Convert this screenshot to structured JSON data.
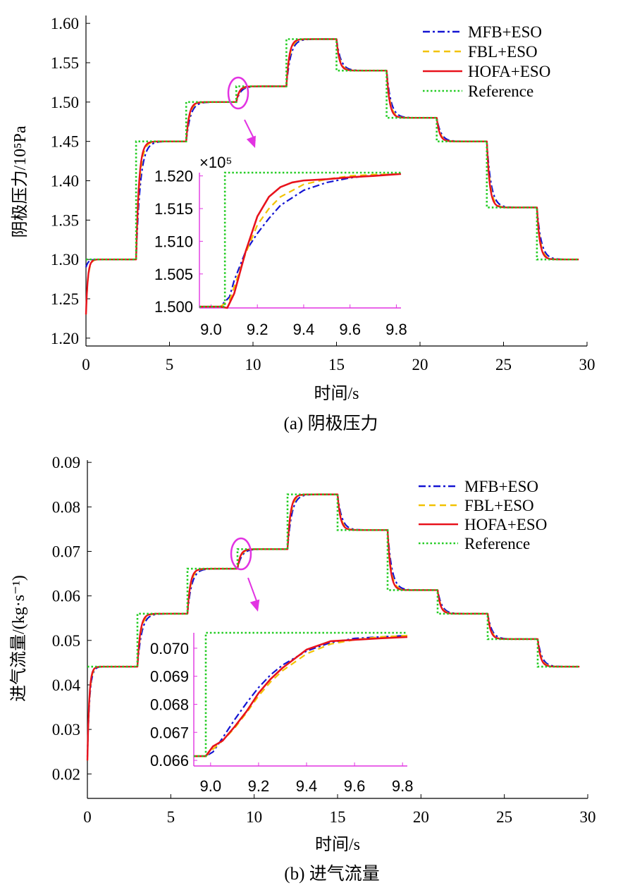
{
  "chart_data": [
    {
      "type": "line",
      "caption": "(a) 阴极压力",
      "xlabel": "时间/s",
      "ylabel": "阴极压力/10⁵Pa",
      "xlim": [
        0,
        30
      ],
      "ylim": [
        1.19,
        1.61
      ],
      "xticks": [
        0,
        5,
        10,
        15,
        20,
        25,
        30
      ],
      "yticks": [
        "1.20",
        "1.25",
        "1.30",
        "1.35",
        "1.40",
        "1.45",
        "1.50",
        "1.55",
        "1.60"
      ],
      "reference_steps": [
        [
          0,
          1.3
        ],
        [
          3,
          1.45
        ],
        [
          6,
          1.5
        ],
        [
          9,
          1.52
        ],
        [
          12,
          1.58
        ],
        [
          15,
          1.54
        ],
        [
          18,
          1.48
        ],
        [
          21,
          1.45
        ],
        [
          24,
          1.366
        ],
        [
          27,
          1.3
        ]
      ],
      "x_end": 29.5,
      "initial_value": 1.23,
      "legend": [
        "MFB+ESO",
        "FBL+ESO",
        "HOFA+ESO",
        "Reference"
      ],
      "legend_position": "top-right",
      "colors": {
        "MFB+ESO": "#1414d2",
        "FBL+ESO": "#f2c200",
        "HOFA+ESO": "#e8121c",
        "Reference": "#22cc22",
        "annotation": "#e233e2"
      },
      "inset": {
        "multiplier": "×10⁵",
        "xlim": [
          8.95,
          9.82
        ],
        "ylim": [
          1.4998,
          1.5205
        ],
        "xticks": [
          "9.0",
          "9.2",
          "9.4",
          "9.6",
          "9.8"
        ],
        "yticks": [
          "1.500",
          "1.505",
          "1.510",
          "1.515",
          "1.520"
        ],
        "reference": [
          [
            8.95,
            1.5
          ],
          [
            9.06,
            1.5
          ],
          [
            9.06,
            1.5205
          ],
          [
            9.82,
            1.5205
          ]
        ],
        "series": [
          {
            "name": "MFB+ESO",
            "points": [
              [
                8.95,
                1.5
              ],
              [
                9.04,
                1.5
              ],
              [
                9.08,
                1.5015
              ],
              [
                9.1,
                1.504
              ],
              [
                9.15,
                1.5085
              ],
              [
                9.2,
                1.5112
              ],
              [
                9.25,
                1.5135
              ],
              [
                9.3,
                1.5155
              ],
              [
                9.4,
                1.5178
              ],
              [
                9.5,
                1.519
              ],
              [
                9.6,
                1.5197
              ],
              [
                9.7,
                1.5201
              ],
              [
                9.82,
                1.5203
              ]
            ]
          },
          {
            "name": "FBL+ESO",
            "points": [
              [
                8.95,
                1.5
              ],
              [
                9.04,
                1.5
              ],
              [
                9.08,
                1.501
              ],
              [
                9.1,
                1.503
              ],
              [
                9.15,
                1.5082
              ],
              [
                9.2,
                1.5125
              ],
              [
                9.25,
                1.515
              ],
              [
                9.3,
                1.5168
              ],
              [
                9.4,
                1.5187
              ],
              [
                9.5,
                1.5195
              ],
              [
                9.6,
                1.52
              ],
              [
                9.7,
                1.5202
              ],
              [
                9.82,
                1.5203
              ]
            ]
          },
          {
            "name": "HOFA+ESO",
            "points": [
              [
                8.95,
                1.5
              ],
              [
                9.04,
                1.5
              ],
              [
                9.07,
                1.4998
              ],
              [
                9.1,
                1.502
              ],
              [
                9.15,
                1.5085
              ],
              [
                9.2,
                1.5138
              ],
              [
                9.25,
                1.5168
              ],
              [
                9.3,
                1.5183
              ],
              [
                9.35,
                1.519
              ],
              [
                9.4,
                1.5193
              ],
              [
                9.5,
                1.5195
              ],
              [
                9.6,
                1.5198
              ],
              [
                9.7,
                1.52
              ],
              [
                9.82,
                1.5203
              ]
            ]
          }
        ]
      }
    },
    {
      "type": "line",
      "caption": "(b) 进气流量",
      "xlabel": "时间/s",
      "ylabel": "进气流量/(kg·s⁻¹)",
      "xlim": [
        0,
        30
      ],
      "ylim": [
        0.0145,
        0.0905
      ],
      "xticks": [
        0,
        5,
        10,
        15,
        20,
        25,
        30
      ],
      "yticks": [
        "0.02",
        "0.03",
        "0.04",
        "0.05",
        "0.06",
        "0.07",
        "0.08",
        "0.09"
      ],
      "reference_steps": [
        [
          0,
          0.0441
        ],
        [
          3,
          0.056
        ],
        [
          6,
          0.0661
        ],
        [
          9,
          0.0705
        ],
        [
          12,
          0.0828
        ],
        [
          15,
          0.0748
        ],
        [
          18,
          0.0613
        ],
        [
          21,
          0.056
        ],
        [
          24,
          0.0503
        ],
        [
          27,
          0.0441
        ]
      ],
      "x_end": 29.5,
      "initial_value": 0.023,
      "legend": [
        "MFB+ESO",
        "FBL+ESO",
        "HOFA+ESO",
        "Reference"
      ],
      "legend_position": "top-right",
      "colors": {
        "MFB+ESO": "#1414d2",
        "FBL+ESO": "#f2c200",
        "HOFA+ESO": "#e8121c",
        "Reference": "#22cc22",
        "annotation": "#e233e2"
      },
      "inset": {
        "multiplier": "",
        "xlim": [
          8.93,
          9.82
        ],
        "ylim": [
          0.0658,
          0.07055
        ],
        "xticks": [
          "9.0",
          "9.2",
          "9.4",
          "9.6",
          "9.8"
        ],
        "yticks": [
          "0.066",
          "0.067",
          "0.068",
          "0.069",
          "0.070"
        ],
        "reference": [
          [
            8.93,
            0.06615
          ],
          [
            8.98,
            0.06615
          ],
          [
            8.98,
            0.07055
          ],
          [
            9.82,
            0.07055
          ]
        ],
        "series": [
          {
            "name": "MFB+ESO",
            "points": [
              [
                8.93,
                0.06615
              ],
              [
                8.98,
                0.06615
              ],
              [
                9.01,
                0.0663
              ],
              [
                9.05,
                0.0668
              ],
              [
                9.1,
                0.06745
              ],
              [
                9.15,
                0.06805
              ],
              [
                9.2,
                0.0686
              ],
              [
                9.25,
                0.06905
              ],
              [
                9.3,
                0.0694
              ],
              [
                9.4,
                0.0699
              ],
              [
                9.5,
                0.0702
              ],
              [
                9.6,
                0.07035
              ],
              [
                9.7,
                0.0704
              ],
              [
                9.82,
                0.07045
              ]
            ]
          },
          {
            "name": "FBL+ESO",
            "points": [
              [
                8.93,
                0.06615
              ],
              [
                8.98,
                0.06615
              ],
              [
                9.01,
                0.0664
              ],
              [
                9.05,
                0.0667
              ],
              [
                9.1,
                0.06715
              ],
              [
                9.15,
                0.0677
              ],
              [
                9.2,
                0.0683
              ],
              [
                9.25,
                0.0688
              ],
              [
                9.3,
                0.0692
              ],
              [
                9.4,
                0.0698
              ],
              [
                9.5,
                0.07015
              ],
              [
                9.6,
                0.0703
              ],
              [
                9.7,
                0.0704
              ],
              [
                9.82,
                0.07045
              ]
            ]
          },
          {
            "name": "HOFA+ESO",
            "points": [
              [
                8.93,
                0.06615
              ],
              [
                8.98,
                0.06615
              ],
              [
                9.01,
                0.0665
              ],
              [
                9.05,
                0.0667
              ],
              [
                9.1,
                0.0672
              ],
              [
                9.15,
                0.06775
              ],
              [
                9.2,
                0.0684
              ],
              [
                9.25,
                0.0689
              ],
              [
                9.3,
                0.0693
              ],
              [
                9.4,
                0.06995
              ],
              [
                9.5,
                0.07025
              ],
              [
                9.6,
                0.0703
              ],
              [
                9.7,
                0.07035
              ],
              [
                9.82,
                0.0704
              ]
            ]
          }
        ]
      }
    }
  ]
}
